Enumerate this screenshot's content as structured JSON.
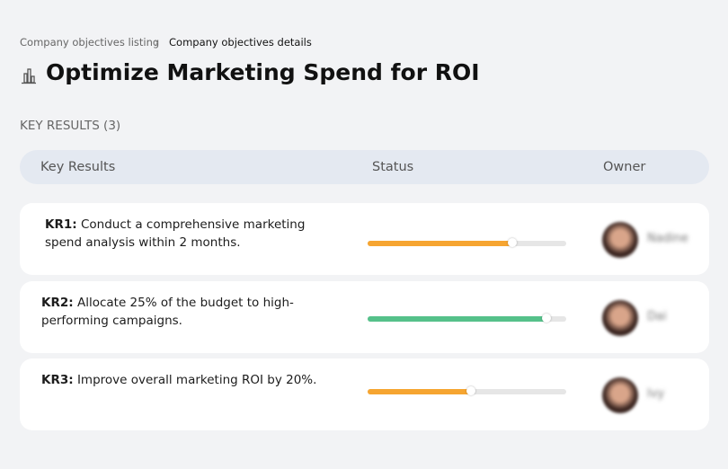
{
  "breadcrumb": {
    "parent": "Company objectives listing",
    "current": "Company objectives details"
  },
  "header": {
    "title": "Optimize Marketing Spend for ROI"
  },
  "section_label": "KEY RESULTS (3)",
  "table": {
    "columns": [
      "Key Results",
      "Status",
      "Owner"
    ],
    "rows": [
      {
        "label": "KR1:",
        "text": "Conduct a comprehensive marketing spend analysis within 2 months.",
        "progress": 73,
        "color": "#f6a531",
        "owner": "Nadine"
      },
      {
        "label": "KR2:",
        "text": "Allocate 25% of the budget to high-performing campaigns.",
        "progress": 90,
        "color": "#55c18a",
        "owner": "Dai"
      },
      {
        "label": "KR3:",
        "text": "Improve overall marketing ROI by 20%.",
        "progress": 52,
        "color": "#f6a531",
        "owner": "Ivy"
      }
    ]
  }
}
